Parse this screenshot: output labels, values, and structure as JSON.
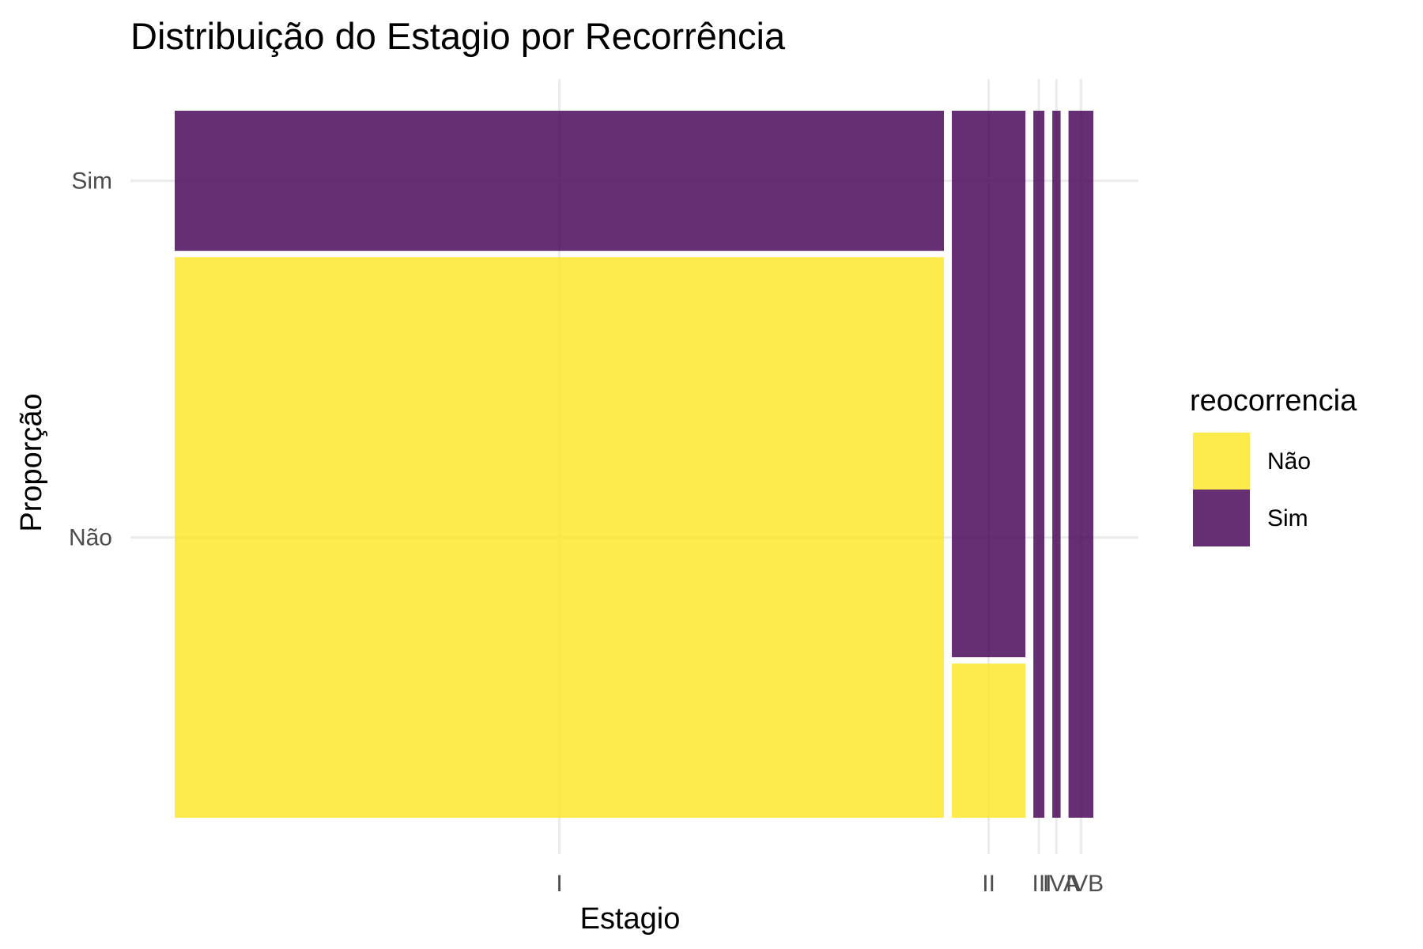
{
  "chart_data": {
    "type": "mosaic",
    "title": "Distribuição do Estagio por Recorrência",
    "xlabel": "Estagio",
    "ylabel": "Proporção",
    "categories": [
      "I",
      "II",
      "III",
      "IVA",
      "IVB"
    ],
    "column_widths": [
      0.836,
      0.08,
      0.012,
      0.009,
      0.027
    ],
    "y_tick_labels": [
      "Não",
      "Sim"
    ],
    "series": [
      {
        "name": "Não",
        "color": "#FDE725",
        "values": [
          0.8,
          0.22,
          0.0,
          0.0,
          0.0
        ]
      },
      {
        "name": "Sim",
        "color": "#440154",
        "values": [
          0.2,
          0.78,
          1.0,
          1.0,
          1.0
        ]
      }
    ],
    "legend": {
      "title": "reocorrencia",
      "position": "right"
    },
    "grid": true
  }
}
